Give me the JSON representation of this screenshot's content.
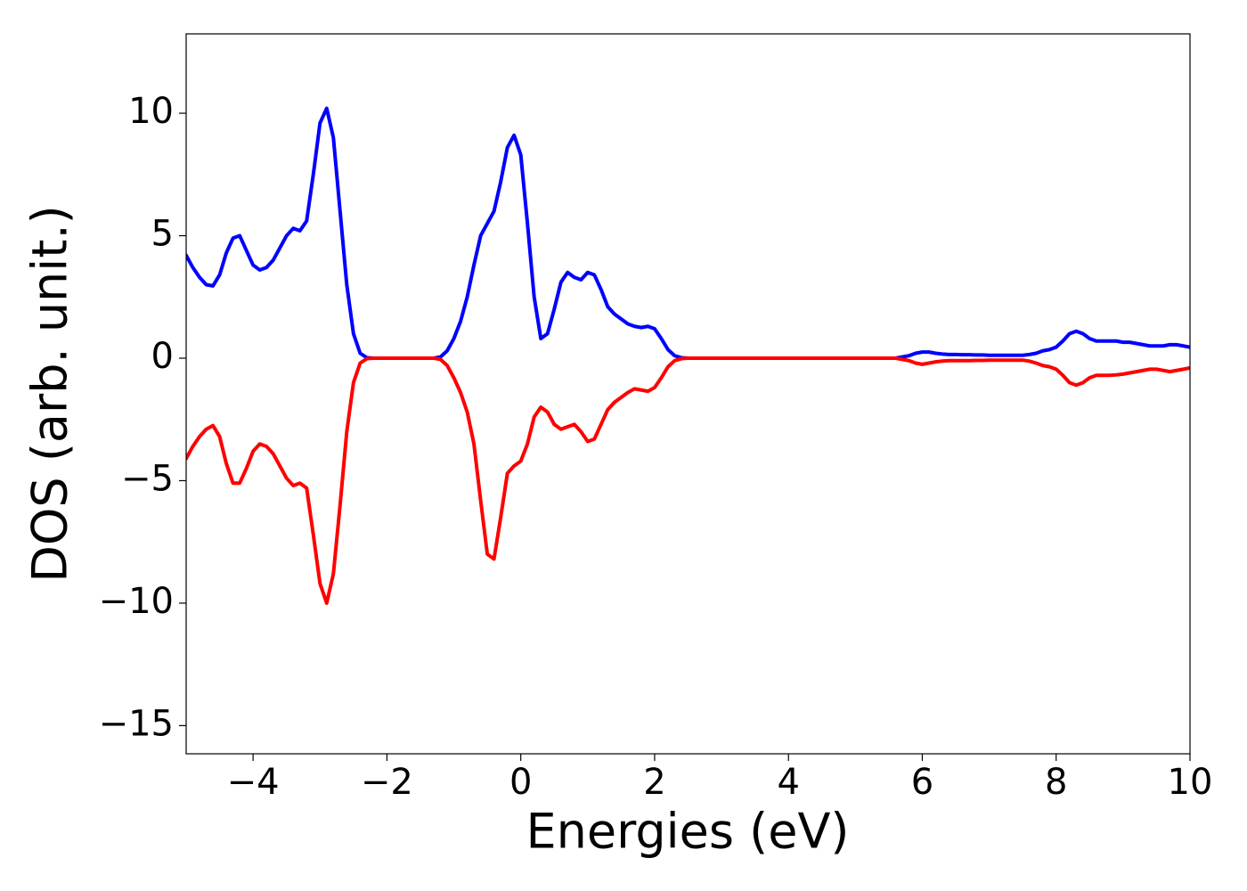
{
  "chart_data": {
    "type": "line",
    "x_label": "Energies (eV)",
    "y_label": "DOS (arb. unit.)",
    "xlim": [
      -5,
      10
    ],
    "ylim": [
      -16.15,
      13.24
    ],
    "xticks": [
      {
        "value": -4,
        "label": "−4"
      },
      {
        "value": -2,
        "label": "−2"
      },
      0,
      2,
      4,
      6,
      8,
      10
    ],
    "yticks": [
      {
        "value": -15,
        "label": "−15"
      },
      {
        "value": -10,
        "label": "−10"
      },
      {
        "value": -5,
        "label": "−5"
      },
      0,
      5,
      10
    ],
    "grid": false,
    "x": [
      -5,
      -4.9,
      -4.8,
      -4.7,
      -4.6,
      -4.5,
      -4.4,
      -4.3,
      -4.2,
      -4.1,
      -4,
      -3.9,
      -3.8,
      -3.7,
      -3.6,
      -3.5,
      -3.4,
      -3.3,
      -3.2,
      -3.1,
      -3,
      -2.9,
      -2.8,
      -2.7,
      -2.6,
      -2.5,
      -2.4,
      -2.3,
      -2.2,
      -2.1,
      -2,
      -1.9,
      -1.8,
      -1.7,
      -1.6,
      -1.5,
      -1.4,
      -1.3,
      -1.2,
      -1.1,
      -1,
      -0.9,
      -0.8,
      -0.7,
      -0.6,
      -0.5,
      -0.4,
      -0.3,
      -0.2,
      -0.1,
      0,
      0.1,
      0.2,
      0.3,
      0.4,
      0.5,
      0.6,
      0.7,
      0.8,
      0.9,
      1,
      1.1,
      1.2,
      1.3,
      1.4,
      1.5,
      1.6,
      1.7,
      1.8,
      1.9,
      2,
      2.1,
      2.2,
      2.3,
      2.4,
      2.5,
      2.6,
      2.7,
      2.8,
      2.9,
      3,
      3.1,
      3.2,
      3.3,
      3.4,
      3.5,
      3.6,
      3.7,
      3.8,
      3.9,
      4,
      4.1,
      4.2,
      4.3,
      4.4,
      4.5,
      4.6,
      4.7,
      4.8,
      4.9,
      5,
      5.1,
      5.2,
      5.3,
      5.4,
      5.5,
      5.6,
      5.7,
      5.8,
      5.9,
      6,
      6.1,
      6.2,
      6.3,
      6.4,
      6.5,
      6.6,
      6.7,
      6.8,
      6.9,
      7,
      7.1,
      7.2,
      7.3,
      7.4,
      7.5,
      7.6,
      7.7,
      7.8,
      7.9,
      8,
      8.1,
      8.2,
      8.3,
      8.4,
      8.5,
      8.6,
      8.7,
      8.8,
      8.9,
      9,
      9.1,
      9.2,
      9.3,
      9.4,
      9.5,
      9.6,
      9.7,
      9.8,
      9.9,
      10
    ],
    "series": [
      {
        "color": "#0000ff",
        "values": [
          4.2,
          3.7,
          3.3,
          3.0,
          2.95,
          3.4,
          4.3,
          4.9,
          5.0,
          4.4,
          3.8,
          3.6,
          3.7,
          4.0,
          4.5,
          5.0,
          5.3,
          5.2,
          5.6,
          7.5,
          9.6,
          10.2,
          9.0,
          6.0,
          3.0,
          1.0,
          0.2,
          0.02,
          0,
          0,
          0,
          0,
          0,
          0,
          0,
          0,
          0,
          0,
          0.05,
          0.3,
          0.8,
          1.5,
          2.5,
          3.8,
          5.0,
          5.5,
          6.0,
          7.2,
          8.6,
          9.1,
          8.3,
          5.5,
          2.5,
          0.8,
          1.0,
          2.0,
          3.1,
          3.5,
          3.3,
          3.2,
          3.5,
          3.4,
          2.8,
          2.1,
          1.8,
          1.6,
          1.4,
          1.3,
          1.25,
          1.3,
          1.2,
          0.8,
          0.35,
          0.1,
          0.02,
          0,
          0,
          0,
          0,
          0,
          0,
          0,
          0,
          0,
          0,
          0,
          0,
          0,
          0,
          0,
          0,
          0,
          0,
          0,
          0,
          0,
          0,
          0,
          0,
          0,
          0,
          0,
          0,
          0,
          0,
          0,
          0,
          0.05,
          0.1,
          0.2,
          0.25,
          0.25,
          0.2,
          0.17,
          0.15,
          0.15,
          0.14,
          0.14,
          0.13,
          0.13,
          0.12,
          0.12,
          0.12,
          0.12,
          0.12,
          0.12,
          0.15,
          0.2,
          0.3,
          0.35,
          0.45,
          0.7,
          1.0,
          1.1,
          1.0,
          0.8,
          0.7,
          0.7,
          0.7,
          0.7,
          0.65,
          0.65,
          0.6,
          0.55,
          0.5,
          0.5,
          0.5,
          0.55,
          0.55,
          0.5,
          0.45
        ]
      },
      {
        "color": "#ff0000",
        "values": [
          -4.1,
          -3.6,
          -3.2,
          -2.9,
          -2.75,
          -3.2,
          -4.3,
          -5.1,
          -5.1,
          -4.5,
          -3.8,
          -3.5,
          -3.6,
          -3.9,
          -4.4,
          -4.9,
          -5.2,
          -5.1,
          -5.3,
          -7.2,
          -9.2,
          -10.0,
          -8.8,
          -6.0,
          -3.0,
          -1.0,
          -0.2,
          -0.02,
          0,
          0,
          0,
          0,
          0,
          0,
          0,
          0,
          0,
          0,
          -0.05,
          -0.3,
          -0.8,
          -1.4,
          -2.2,
          -3.5,
          -5.8,
          -8.0,
          -8.2,
          -6.5,
          -4.7,
          -4.4,
          -4.2,
          -3.5,
          -2.4,
          -2.0,
          -2.2,
          -2.7,
          -2.9,
          -2.8,
          -2.7,
          -3.0,
          -3.4,
          -3.3,
          -2.7,
          -2.1,
          -1.8,
          -1.6,
          -1.4,
          -1.25,
          -1.3,
          -1.35,
          -1.2,
          -0.8,
          -0.35,
          -0.1,
          -0.02,
          0,
          0,
          0,
          0,
          0,
          0,
          0,
          0,
          0,
          0,
          0,
          0,
          0,
          0,
          0,
          0,
          0,
          0,
          0,
          0,
          0,
          0,
          0,
          0,
          0,
          0,
          0,
          0,
          0,
          0,
          0,
          0,
          -0.05,
          -0.1,
          -0.2,
          -0.25,
          -0.2,
          -0.15,
          -0.12,
          -0.1,
          -0.1,
          -0.1,
          -0.1,
          -0.09,
          -0.09,
          -0.08,
          -0.08,
          -0.08,
          -0.08,
          -0.08,
          -0.08,
          -0.12,
          -0.2,
          -0.3,
          -0.35,
          -0.45,
          -0.7,
          -1.0,
          -1.1,
          -1.0,
          -0.8,
          -0.7,
          -0.7,
          -0.7,
          -0.68,
          -0.65,
          -0.6,
          -0.55,
          -0.5,
          -0.45,
          -0.45,
          -0.5,
          -0.55,
          -0.5,
          -0.45,
          -0.4
        ]
      }
    ]
  }
}
